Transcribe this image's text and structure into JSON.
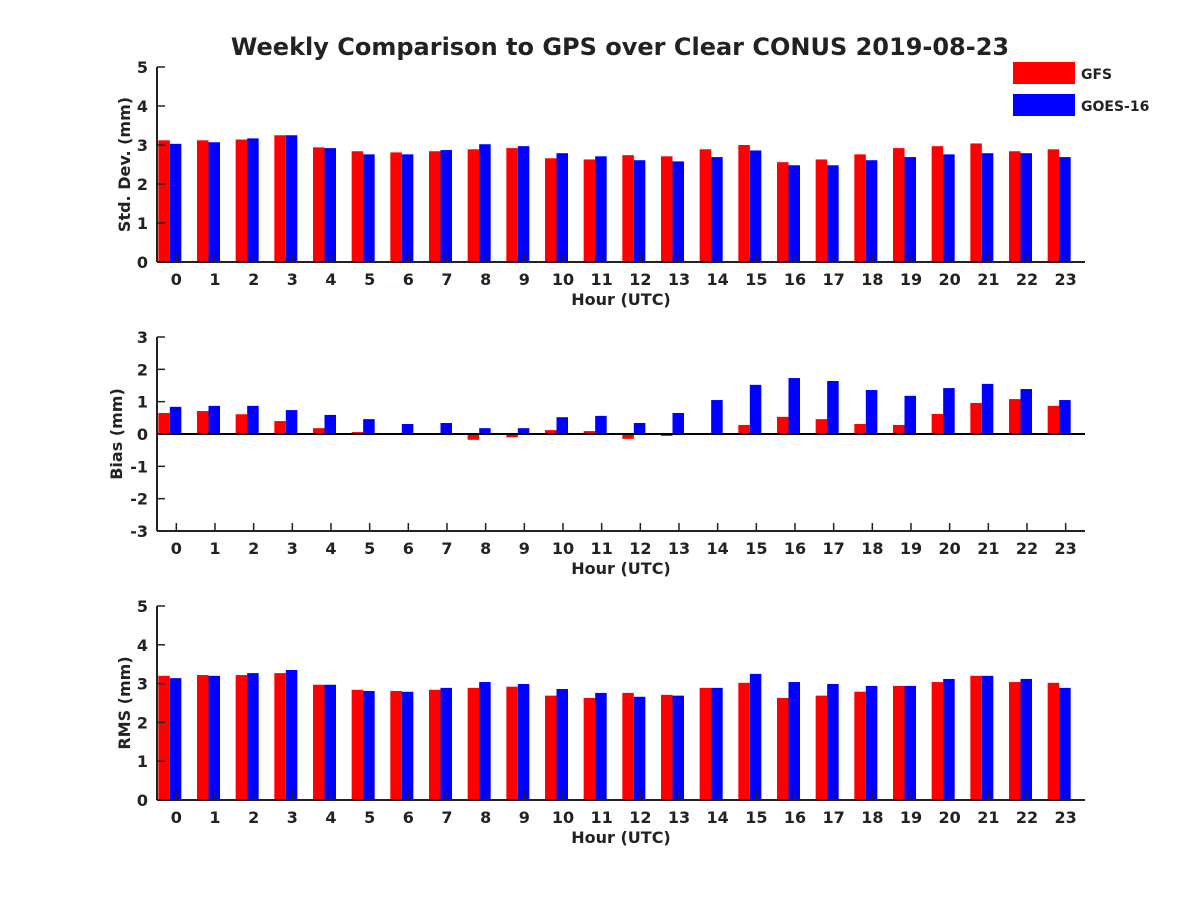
{
  "title": "Weekly Comparison to GPS over Clear CONUS 2019-08-23",
  "legend": [
    {
      "name": "GFS",
      "color": "#ff0000"
    },
    {
      "name": "GOES-16",
      "color": "#0000ff"
    }
  ],
  "chart_data": [
    {
      "type": "bar",
      "title": "Weekly Comparison to GPS over Clear CONUS 2019-08-23",
      "xlabel": "Hour (UTC)",
      "ylabel": "Std. Dev. (mm)",
      "ylim": [
        0,
        5
      ],
      "yticks": [
        "0",
        "1",
        "2",
        "3",
        "4",
        "5"
      ],
      "categories": [
        "0",
        "1",
        "2",
        "3",
        "4",
        "5",
        "6",
        "7",
        "8",
        "9",
        "10",
        "11",
        "12",
        "13",
        "14",
        "15",
        "16",
        "17",
        "18",
        "19",
        "20",
        "21",
        "22",
        "23"
      ],
      "legend_position": "top-right",
      "grid": false,
      "series": [
        {
          "name": "GFS",
          "color": "#ff0000",
          "values": [
            3.12,
            3.12,
            3.14,
            3.25,
            2.94,
            2.84,
            2.81,
            2.84,
            2.89,
            2.92,
            2.66,
            2.63,
            2.74,
            2.71,
            2.89,
            3.0,
            2.56,
            2.63,
            2.76,
            2.92,
            2.97,
            3.04,
            2.84,
            2.89
          ]
        },
        {
          "name": "GOES-16",
          "color": "#0000ff",
          "values": [
            3.03,
            3.07,
            3.17,
            3.25,
            2.92,
            2.76,
            2.76,
            2.87,
            3.02,
            2.97,
            2.79,
            2.71,
            2.61,
            2.58,
            2.69,
            2.86,
            2.48,
            2.48,
            2.61,
            2.69,
            2.76,
            2.79,
            2.79,
            2.69
          ]
        }
      ]
    },
    {
      "type": "bar",
      "xlabel": "Hour (UTC)",
      "ylabel": "Bias (mm)",
      "ylim": [
        -3,
        3
      ],
      "yticks": [
        "-3",
        "-2",
        "-1",
        "0",
        "1",
        "2",
        "3"
      ],
      "categories": [
        "0",
        "1",
        "2",
        "3",
        "4",
        "5",
        "6",
        "7",
        "8",
        "9",
        "10",
        "11",
        "12",
        "13",
        "14",
        "15",
        "16",
        "17",
        "18",
        "19",
        "20",
        "21",
        "22",
        "23"
      ],
      "grid": false,
      "series": [
        {
          "name": "GFS",
          "color": "#ff0000",
          "values": [
            0.65,
            0.71,
            0.61,
            0.4,
            0.18,
            0.06,
            -0.03,
            0.0,
            -0.18,
            -0.1,
            0.12,
            0.09,
            -0.15,
            -0.06,
            0.0,
            0.28,
            0.53,
            0.46,
            0.31,
            0.28,
            0.62,
            0.96,
            1.08,
            0.87
          ]
        },
        {
          "name": "GOES-16",
          "color": "#0000ff",
          "values": [
            0.84,
            0.87,
            0.87,
            0.74,
            0.59,
            0.46,
            0.31,
            0.34,
            0.18,
            0.18,
            0.52,
            0.56,
            0.34,
            0.65,
            1.05,
            1.52,
            1.73,
            1.64,
            1.36,
            1.18,
            1.42,
            1.55,
            1.39,
            1.05
          ]
        }
      ]
    },
    {
      "type": "bar",
      "xlabel": "Hour (UTC)",
      "ylabel": "RMS (mm)",
      "ylim": [
        0,
        5
      ],
      "yticks": [
        "0",
        "1",
        "2",
        "3",
        "4",
        "5"
      ],
      "categories": [
        "0",
        "1",
        "2",
        "3",
        "4",
        "5",
        "6",
        "7",
        "8",
        "9",
        "10",
        "11",
        "12",
        "13",
        "14",
        "15",
        "16",
        "17",
        "18",
        "19",
        "20",
        "21",
        "22",
        "23"
      ],
      "grid": false,
      "series": [
        {
          "name": "GFS",
          "color": "#ff0000",
          "values": [
            3.2,
            3.22,
            3.22,
            3.27,
            2.97,
            2.84,
            2.81,
            2.84,
            2.89,
            2.92,
            2.69,
            2.63,
            2.76,
            2.71,
            2.89,
            3.02,
            2.63,
            2.69,
            2.79,
            2.94,
            3.04,
            3.2,
            3.04,
            3.02
          ]
        },
        {
          "name": "GOES-16",
          "color": "#0000ff",
          "values": [
            3.14,
            3.2,
            3.27,
            3.35,
            2.97,
            2.81,
            2.79,
            2.89,
            3.04,
            2.99,
            2.86,
            2.76,
            2.66,
            2.69,
            2.89,
            3.25,
            3.04,
            2.99,
            2.94,
            2.94,
            3.12,
            3.2,
            3.12,
            2.89
          ]
        }
      ]
    }
  ]
}
